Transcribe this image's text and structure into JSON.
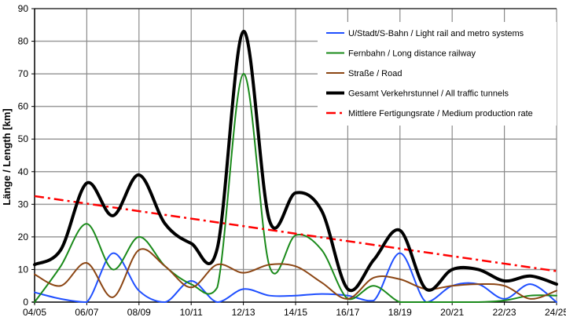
{
  "chart_data": {
    "type": "line",
    "title": "",
    "xlabel": "",
    "ylabel": "Länge / Length [km]",
    "ylim": [
      0,
      90
    ],
    "yticks": [
      0,
      10,
      20,
      30,
      40,
      50,
      60,
      70,
      80,
      90
    ],
    "grid": true,
    "legend_position": "upper right",
    "x_tick_labels": [
      "04/05",
      "06/07",
      "08/09",
      "10/11",
      "12/13",
      "14/15",
      "16/17",
      "18/19",
      "20/21",
      "22/23",
      "24/25"
    ],
    "x": [
      "04/05",
      "05/06",
      "06/07",
      "07/08",
      "08/09",
      "09/10",
      "10/11",
      "11/12",
      "12/13",
      "13/14",
      "14/15",
      "15/16",
      "16/17",
      "17/18",
      "18/19",
      "19/20",
      "20/21",
      "21/22",
      "22/23",
      "23/24",
      "24/25"
    ],
    "series": [
      {
        "name": "U/Stadt/S-Bahn / Light rail and metro systems",
        "color": "#1f4fff",
        "style": "solid",
        "width": 2,
        "values": [
          3,
          1,
          0,
          15,
          3.5,
          0,
          6.5,
          0,
          4,
          2,
          2,
          2.5,
          2,
          0.5,
          15,
          0,
          5,
          5.5,
          1,
          5.5,
          0
        ]
      },
      {
        "name": "Fernbahn / Long distance railway",
        "color": "#1a8a1a",
        "style": "solid",
        "width": 2,
        "values": [
          0,
          11,
          24,
          10,
          20,
          11,
          5.5,
          4.5,
          70,
          11,
          20.5,
          16,
          1,
          5,
          0,
          0,
          0,
          0,
          0.5,
          2,
          2
        ]
      },
      {
        "name": "Straße / Road",
        "color": "#8b4513",
        "style": "solid",
        "width": 2,
        "values": [
          8.5,
          5,
          12,
          1.5,
          16,
          11,
          4.5,
          11.5,
          9,
          11.5,
          11,
          6,
          1,
          7.5,
          7,
          4,
          5,
          5.5,
          5,
          1,
          3.5
        ]
      },
      {
        "name": "Gesamt Verkehrstunnel / All traffic tunnels",
        "color": "#000000",
        "style": "solid",
        "width": 4,
        "values": [
          11.5,
          16,
          36.5,
          26.5,
          39,
          24,
          18,
          16.5,
          83,
          25,
          33.5,
          28,
          4,
          13,
          22,
          4,
          10,
          10,
          6.5,
          8,
          5.5
        ]
      },
      {
        "name": "Mittlere Fertigungsrate / Medium production rate",
        "color": "#ff0000",
        "style": "dashdot",
        "width": 2.5,
        "values": [
          32.5,
          31.35,
          30.2,
          29.05,
          27.9,
          26.75,
          25.6,
          24.45,
          23.3,
          22.15,
          21.0,
          19.85,
          18.7,
          17.55,
          16.4,
          15.25,
          14.1,
          12.95,
          11.8,
          10.65,
          9.5
        ]
      }
    ]
  }
}
